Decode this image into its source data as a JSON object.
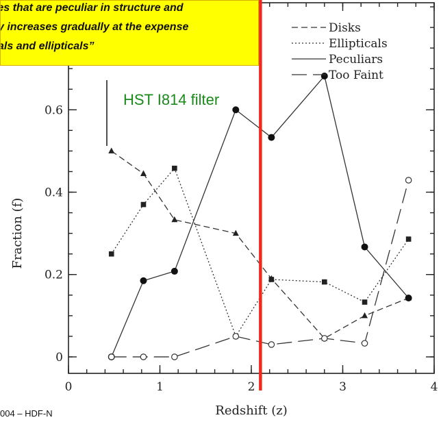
{
  "chart_data": {
    "type": "line",
    "xlabel": "Redshift (z)",
    "ylabel": "Fraction (f)",
    "xlim": [
      0,
      4
    ],
    "ylim": [
      -0.04,
      0.86
    ],
    "x_ticks": [
      "0",
      "1",
      "2",
      "3",
      "4"
    ],
    "y_ticks": [
      "0",
      "0.2",
      "0.4",
      "0.6"
    ],
    "legend": {
      "placement": "top-right"
    },
    "vertical_marker": {
      "x": 2.1,
      "color": "#ee2a1d"
    },
    "series": [
      {
        "name": "Disks",
        "style": "dashed",
        "marker": "triangle",
        "x": [
          0.47,
          0.82,
          1.16,
          1.83,
          2.22,
          2.8,
          3.24,
          3.72
        ],
        "y": [
          0.5,
          0.445,
          0.333,
          0.3,
          0.19,
          0.045,
          0.1,
          0.143
        ]
      },
      {
        "name": "Ellipticals",
        "style": "dotted",
        "marker": "square",
        "x": [
          0.47,
          0.82,
          1.16,
          1.83,
          2.22,
          2.8,
          3.24,
          3.72
        ],
        "y": [
          0.25,
          0.37,
          0.458,
          0.05,
          0.188,
          0.182,
          0.133,
          0.286
        ]
      },
      {
        "name": "Peculiars",
        "style": "solid",
        "marker": "filled-circle",
        "x": [
          0.47,
          0.82,
          1.16,
          1.83,
          2.22,
          2.8,
          3.24,
          3.72
        ],
        "y": [
          0.0,
          0.185,
          0.208,
          0.6,
          0.533,
          0.682,
          0.267,
          0.143
        ]
      },
      {
        "name": "Too Faint",
        "style": "long-dash",
        "marker": "open-circle",
        "x": [
          0.47,
          0.82,
          1.16,
          1.83,
          2.22,
          2.8,
          3.24,
          3.72
        ],
        "y": [
          0.0,
          0.0,
          0.0,
          0.05,
          0.03,
          0.045,
          0.033,
          0.429
        ]
      }
    ]
  },
  "callout": {
    "lines": [
      "xies that are peculiar in structure and",
      "y increases gradually at the expense",
      "als and ellipticals”"
    ],
    "color": "#ffff00"
  },
  "annotation_filter": "HST I814 filter",
  "source_note": "004 – HDF-N"
}
